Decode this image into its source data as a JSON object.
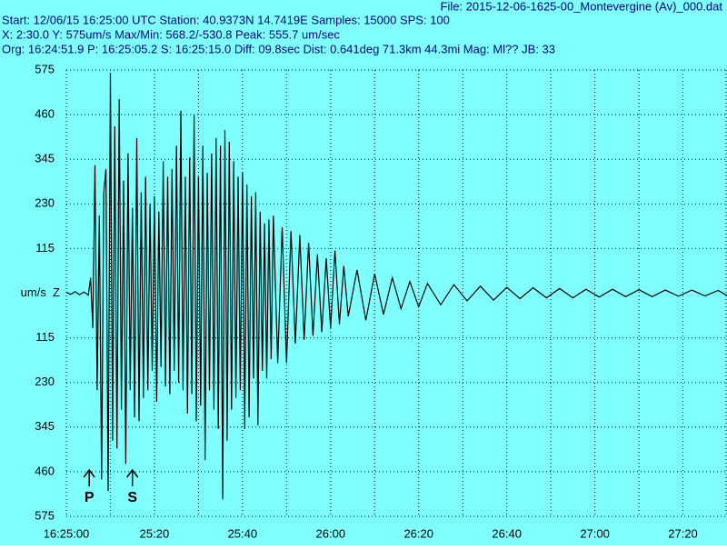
{
  "chart_data": {
    "type": "line",
    "header_lines": [
      "File: 2015-12-06-1625-00_Montevergine (Av)_000.dat",
      "Start: 12/06/15 16:25:00 UTC Station:  40.9373N 14.7419E Samples: 15000  SPS: 100",
      " X: 2:30.0 Y: 575um/s Max/Min: 568.2/-530.8  Peak: 555.7 um/sec",
      "Org: 16:24:51.9 P: 16:25:05.2 S: 16:25:15.0 Diff: 09.8sec Dist: 0.641deg 71.3km 44.3mi  Mag: Ml?? JB: 33"
    ],
    "ylabel": "um/s  Z",
    "xlim": [
      0,
      150
    ],
    "ylim": [
      -575,
      575
    ],
    "xticks": [
      {
        "value": 0,
        "label": "16:25:00"
      },
      {
        "value": 20,
        "label": "25:20"
      },
      {
        "value": 40,
        "label": "25:40"
      },
      {
        "value": 60,
        "label": "26:00"
      },
      {
        "value": 80,
        "label": "26:20"
      },
      {
        "value": 100,
        "label": "26:40"
      },
      {
        "value": 120,
        "label": "27:00"
      },
      {
        "value": 140,
        "label": "27:20"
      }
    ],
    "xminor": [
      10,
      30,
      50,
      70,
      90,
      110,
      130,
      150
    ],
    "yticks": [
      575,
      460,
      345,
      230,
      115,
      {
        "value": -115,
        "label": "115"
      },
      {
        "value": -230,
        "label": "230"
      },
      {
        "value": -345,
        "label": "345"
      },
      {
        "value": -460,
        "label": "460"
      },
      {
        "value": -575,
        "label": "575"
      }
    ],
    "grid": true,
    "background": "#80ffff",
    "annotations": [
      {
        "text": "P",
        "x": 5.2
      },
      {
        "text": "S",
        "x": 15.0
      }
    ],
    "series": [
      {
        "color": "#000000",
        "x": [
          0,
          1,
          2,
          3,
          4,
          5,
          5.5,
          6,
          6.5,
          7,
          7.5,
          8,
          8.5,
          9,
          9.5,
          10,
          10.5,
          11,
          11.5,
          12,
          12.5,
          13,
          13.5,
          14,
          14.5,
          15,
          15.5,
          16,
          16.5,
          17,
          17.5,
          18,
          18.5,
          19,
          19.5,
          20,
          20.5,
          21,
          21.5,
          22,
          22.5,
          23,
          23.5,
          24,
          24.5,
          25,
          25.5,
          26,
          26.5,
          27,
          27.5,
          28,
          28.5,
          29,
          29.5,
          30,
          30.5,
          31,
          31.5,
          32,
          32.5,
          33,
          33.5,
          34,
          34.5,
          35,
          35.5,
          36,
          36.5,
          37,
          37.5,
          38,
          38.5,
          39,
          39.5,
          40,
          40.5,
          41,
          41.5,
          42,
          42.5,
          43,
          43.5,
          44,
          44.5,
          45,
          45.5,
          46,
          46.5,
          47,
          48,
          49,
          50,
          51,
          52,
          53,
          54,
          55,
          56,
          57,
          58,
          59,
          60,
          61,
          62,
          63,
          64,
          66,
          68,
          70,
          72,
          74,
          76,
          78,
          80,
          82,
          85,
          88,
          91,
          94,
          97,
          100,
          103,
          106,
          109,
          112,
          115,
          118,
          121,
          124,
          127,
          130,
          133,
          136,
          139,
          142,
          145,
          148,
          150
        ],
        "values": [
          2,
          -3,
          4,
          -4,
          3,
          -5,
          40,
          -90,
          330,
          -250,
          200,
          -480,
          260,
          320,
          -510,
          568,
          -380,
          430,
          -400,
          500,
          -300,
          290,
          -440,
          360,
          -250,
          220,
          -320,
          400,
          -330,
          260,
          -270,
          300,
          -250,
          230,
          -200,
          250,
          -280,
          210,
          -190,
          340,
          -240,
          300,
          -260,
          320,
          -200,
          380,
          -230,
          470,
          -250,
          300,
          -310,
          350,
          -260,
          460,
          -330,
          300,
          -290,
          380,
          -430,
          310,
          -250,
          360,
          -300,
          400,
          -350,
          380,
          -531,
          420,
          -380,
          390,
          -300,
          340,
          -270,
          300,
          -250,
          310,
          -350,
          280,
          -320,
          250,
          -220,
          260,
          -340,
          210,
          -200,
          180,
          -220,
          190,
          -170,
          200,
          -180,
          170,
          -180,
          160,
          -130,
          150,
          -120,
          130,
          -110,
          100,
          -100,
          90,
          -90,
          110,
          -80,
          70,
          -60,
          60,
          -70,
          50,
          -55,
          40,
          -40,
          30,
          -35,
          25,
          -30,
          22,
          -20,
          18,
          -18,
          15,
          -14,
          14,
          -12,
          12,
          -12,
          10,
          -10,
          10,
          -9,
          9,
          -9,
          8,
          -8,
          8,
          -7,
          7,
          -6
        ]
      }
    ]
  }
}
